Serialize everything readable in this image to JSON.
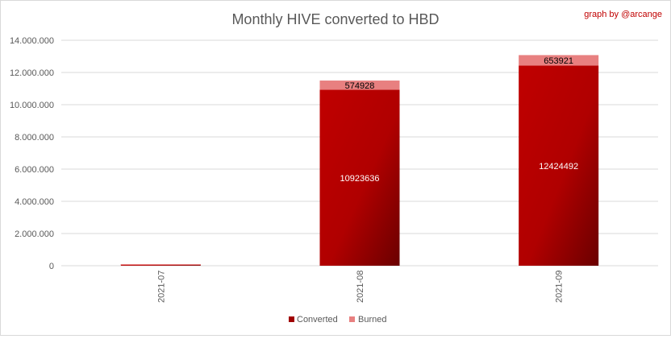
{
  "chart_data": {
    "type": "bar",
    "stacked": true,
    "title": "Monthly HIVE converted to HBD",
    "credit": "graph by @arcange",
    "categories": [
      "2021-07",
      "2021-08",
      "2021-09"
    ],
    "series": [
      {
        "name": "Converted",
        "color": "#c00000",
        "values": [
          85000,
          10923636,
          12424492
        ],
        "labels": [
          "",
          "10923636",
          "12424492"
        ]
      },
      {
        "name": "Burned",
        "color": "#e88080",
        "values": [
          8000,
          574928,
          653921
        ],
        "labels": [
          "",
          "574928",
          "653921"
        ]
      }
    ],
    "ylim": [
      0,
      14000000
    ],
    "yticks": [
      "0",
      "2.000.000",
      "4.000.000",
      "6.000.000",
      "8.000.000",
      "10.000.000",
      "12.000.000",
      "14.000.000"
    ],
    "grid": true,
    "legend": "bottom"
  }
}
